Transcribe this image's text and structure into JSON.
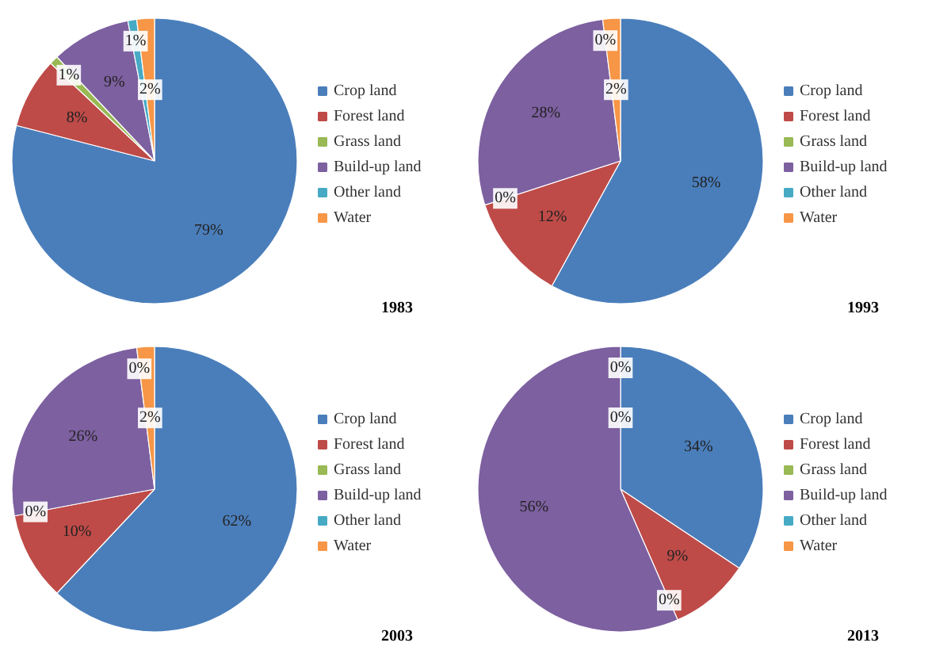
{
  "chart_data": [
    {
      "type": "pie",
      "title": "1983",
      "categories": [
        "Crop land",
        "Forest land",
        "Grass land",
        "Build-up land",
        "Other land",
        "Water"
      ],
      "values": [
        79,
        8,
        1,
        9,
        1,
        2
      ],
      "value_labels": [
        "79%",
        "8%",
        "1%",
        "9%",
        "1%",
        "2%"
      ],
      "colors": [
        "#4a7ebb",
        "#be4b48",
        "#98b954",
        "#7d60a0",
        "#46aac5",
        "#f79646"
      ],
      "legend": "right"
    },
    {
      "type": "pie",
      "title": "1993",
      "categories": [
        "Crop land",
        "Forest land",
        "Grass land",
        "Build-up land",
        "Other land",
        "Water"
      ],
      "values": [
        58,
        12,
        0,
        28,
        0,
        2
      ],
      "value_labels": [
        "58%",
        "12%",
        "0%",
        "28%",
        "0%",
        "2%"
      ],
      "colors": [
        "#4a7ebb",
        "#be4b48",
        "#98b954",
        "#7d60a0",
        "#46aac5",
        "#f79646"
      ],
      "legend": "right"
    },
    {
      "type": "pie",
      "title": "2003",
      "categories": [
        "Crop land",
        "Forest land",
        "Grass land",
        "Build-up land",
        "Other land",
        "Water"
      ],
      "values": [
        62,
        10,
        0,
        26,
        0,
        2
      ],
      "value_labels": [
        "62%",
        "10%",
        "0%",
        "26%",
        "0%",
        "2%"
      ],
      "colors": [
        "#4a7ebb",
        "#be4b48",
        "#98b954",
        "#7d60a0",
        "#46aac5",
        "#f79646"
      ],
      "legend": "right"
    },
    {
      "type": "pie",
      "title": "2013",
      "categories": [
        "Crop land",
        "Forest land",
        "Grass land",
        "Build-up land",
        "Other land",
        "Water"
      ],
      "values": [
        34,
        9,
        0,
        56,
        0,
        0
      ],
      "value_labels": [
        "34%",
        "9%",
        "0%",
        "56%",
        "0%",
        "0%"
      ],
      "colors": [
        "#4a7ebb",
        "#be4b48",
        "#98b954",
        "#7d60a0",
        "#46aac5",
        "#f79646"
      ],
      "legend": "right"
    }
  ]
}
